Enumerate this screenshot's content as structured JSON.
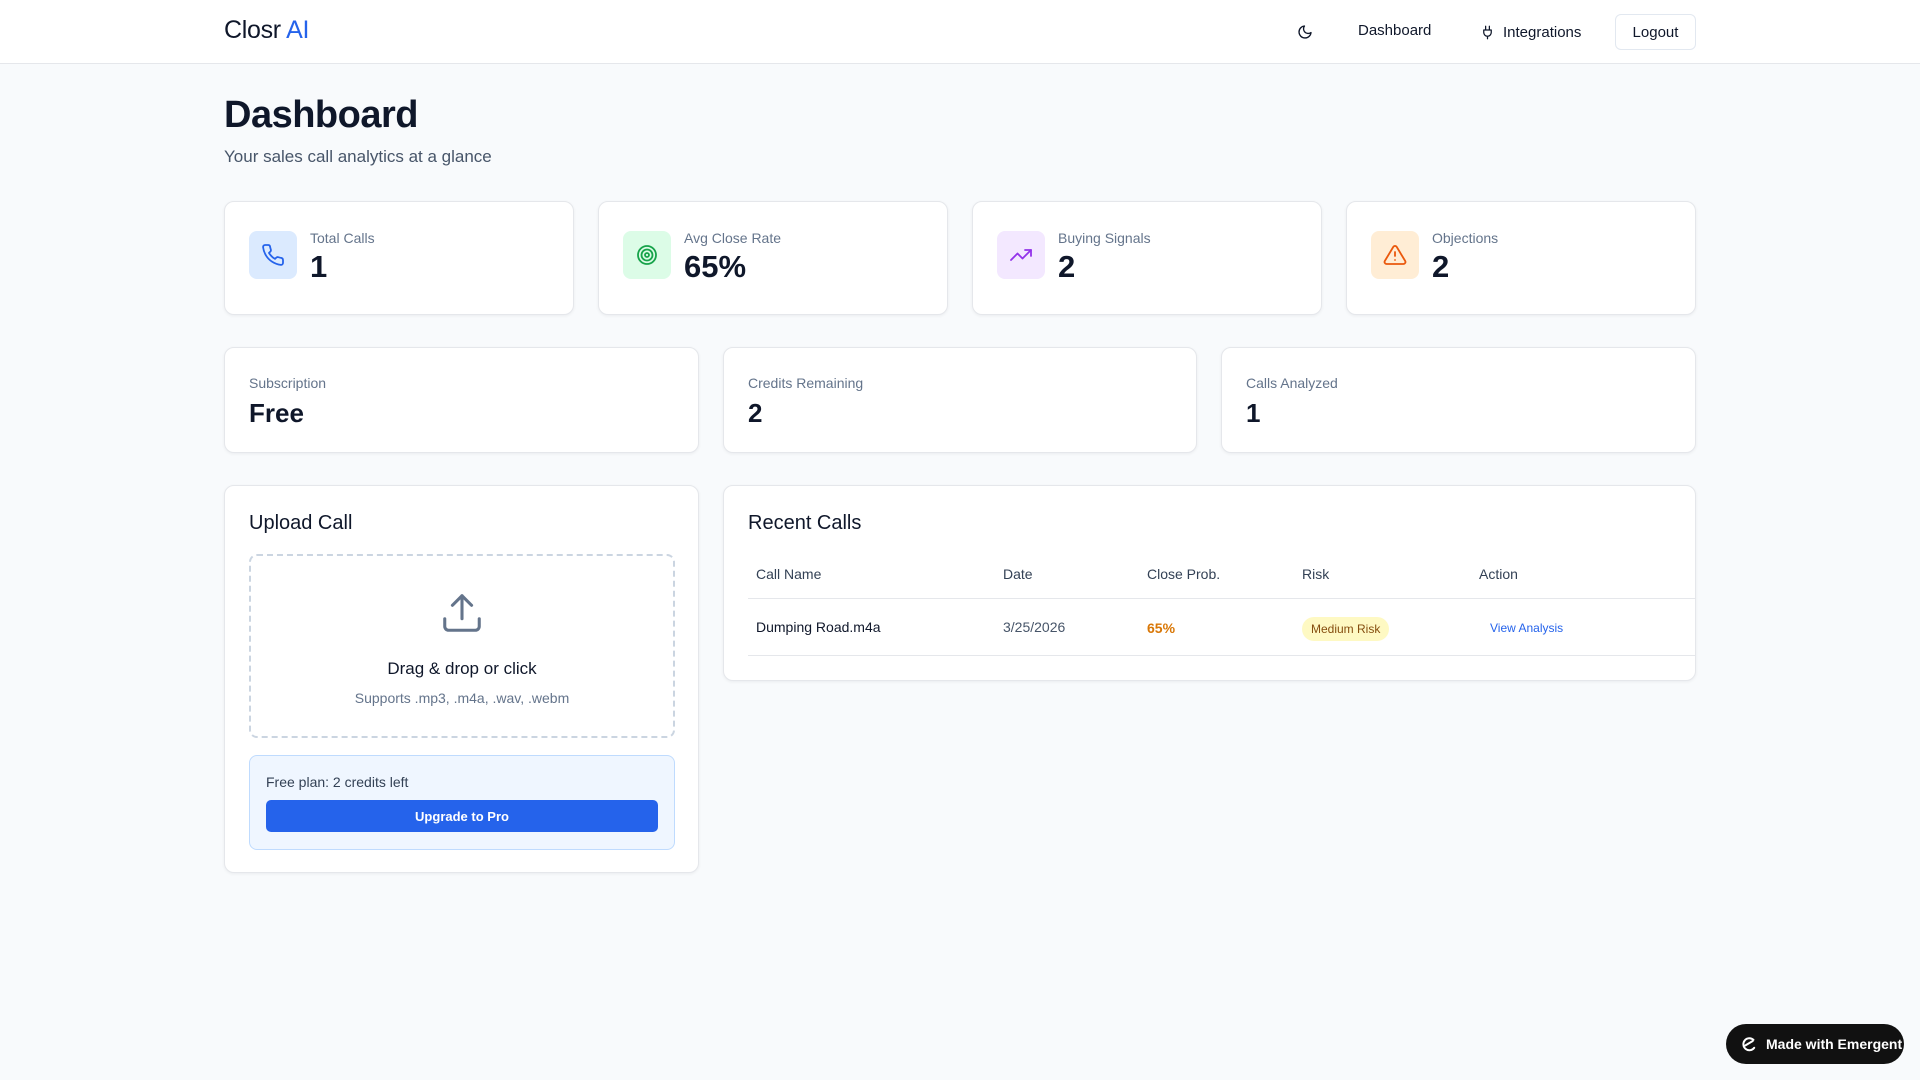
{
  "header": {
    "logo_main": "Closr",
    "logo_accent": "AI",
    "nav_dashboard": "Dashboard",
    "nav_integrations": "Integrations",
    "logout": "Logout"
  },
  "page": {
    "title": "Dashboard",
    "subtitle": "Your sales call analytics at a glance"
  },
  "stats": [
    {
      "label": "Total Calls",
      "value": "1",
      "icon": "phone-icon",
      "bg": "#dbeafe",
      "color": "#2563eb"
    },
    {
      "label": "Avg Close Rate",
      "value": "65%",
      "icon": "target-icon",
      "bg": "#dcfce7",
      "color": "#16a34a"
    },
    {
      "label": "Buying Signals",
      "value": "2",
      "icon": "trending-up-icon",
      "bg": "#f3e8ff",
      "color": "#9333ea"
    },
    {
      "label": "Objections",
      "value": "2",
      "icon": "alert-triangle-icon",
      "bg": "#ffedd5",
      "color": "#ea580c"
    }
  ],
  "info": [
    {
      "label": "Subscription",
      "value": "Free"
    },
    {
      "label": "Credits Remaining",
      "value": "2"
    },
    {
      "label": "Calls Analyzed",
      "value": "1"
    }
  ],
  "upload": {
    "title": "Upload Call",
    "dropzone_title": "Drag & drop or click",
    "dropzone_sub": "Supports .mp3, .m4a, .wav, .webm",
    "plan_text": "Free plan: 2 credits left",
    "upgrade_label": "Upgrade to Pro"
  },
  "recent": {
    "title": "Recent Calls",
    "columns": [
      "Call Name",
      "Date",
      "Close Prob.",
      "Risk",
      "Action"
    ],
    "rows": [
      {
        "name": "Dumping Road.m4a",
        "date": "3/25/2026",
        "prob": "65%",
        "risk": "Medium Risk",
        "action": "View Analysis"
      }
    ]
  },
  "badge": {
    "label": "Made with Emergent"
  },
  "colors": {
    "accent": "#2563eb",
    "prob": "#d97706",
    "risk_bg": "#fef9c3",
    "risk_text": "#854d0e"
  }
}
